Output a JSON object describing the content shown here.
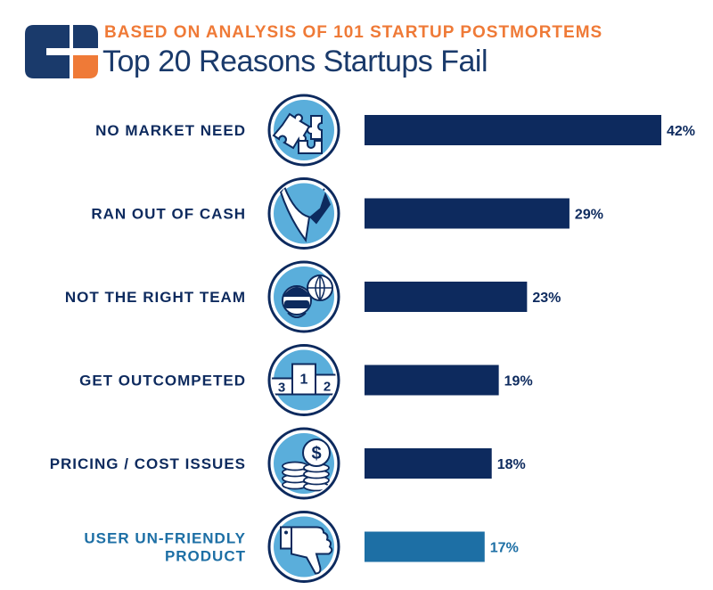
{
  "header": {
    "subtitle": "BASED ON ANALYSIS OF 101 STARTUP POSTMORTEMS",
    "title": "Top 20 Reasons Startups Fail"
  },
  "colors": {
    "navy": "#0d2a5e",
    "highlight": "#1d6fa5",
    "orange": "#ef7a37",
    "icon_fill": "#5aaedb",
    "icon_stroke": "#0d2a5e"
  },
  "chart_data": {
    "type": "bar",
    "orientation": "horizontal",
    "title": "Top 20 Reasons Startups Fail",
    "subtitle": "BASED ON ANALYSIS OF 101 STARTUP POSTMORTEMS",
    "categories": [
      "NO MARKET NEED",
      "RAN OUT OF CASH",
      "NOT THE RIGHT TEAM",
      "GET OUTCOMPETED",
      "PRICING / COST ISSUES",
      "USER UN-FRIENDLY PRODUCT"
    ],
    "label_lines": [
      [
        "NO MARKET NEED"
      ],
      [
        "RAN OUT OF CASH"
      ],
      [
        "NOT THE RIGHT TEAM"
      ],
      [
        "GET OUTCOMPETED"
      ],
      [
        "PRICING / COST ISSUES"
      ],
      [
        "USER UN-FRIENDLY",
        "PRODUCT"
      ]
    ],
    "values": [
      42,
      29,
      23,
      19,
      18,
      17
    ],
    "value_labels": [
      "42%",
      "29%",
      "23%",
      "19%",
      "18%",
      "17%"
    ],
    "icons": [
      "puzzle-icon",
      "cash-drain-icon",
      "team-icon",
      "podium-icon",
      "coins-icon",
      "thumbs-down-icon"
    ],
    "podium_numbers": [
      "3",
      "1",
      "2"
    ],
    "coin_symbol": "$",
    "highlight_index": 5,
    "xlim": [
      0,
      50
    ],
    "unit": "%",
    "xlabel": "",
    "ylabel": "",
    "grid": false,
    "legend": "none"
  }
}
